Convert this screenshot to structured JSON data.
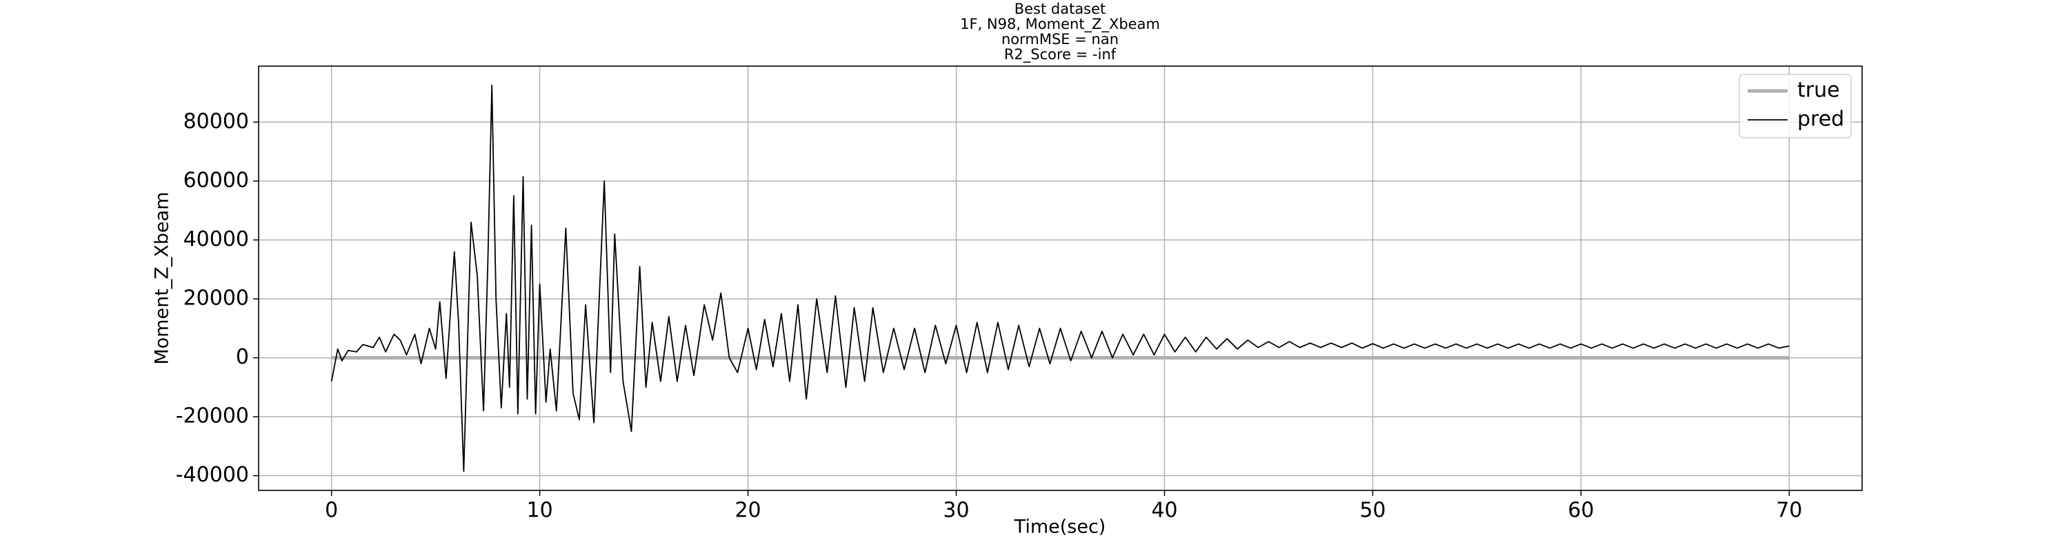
{
  "chart_data": {
    "type": "line",
    "title": [
      "Best dataset",
      "1F, N98, Moment_Z_Xbeam",
      "normMSE = nan",
      "R2_Score = -inf"
    ],
    "xlabel": "Time(sec)",
    "ylabel": "Moment_Z_Xbeam",
    "xlim": [
      -3.5,
      73.5
    ],
    "ylim": [
      -45000,
      99000
    ],
    "xticks": [
      0,
      10,
      20,
      30,
      40,
      50,
      60,
      70
    ],
    "yticks": [
      -40000,
      -20000,
      0,
      20000,
      40000,
      60000,
      80000
    ],
    "grid": true,
    "legend": "upper right",
    "series": [
      {
        "name": "true",
        "color": "#b0b0b0",
        "x": [
          0,
          70
        ],
        "values": [
          0,
          0
        ]
      },
      {
        "name": "pred",
        "color": "#000000",
        "x": [
          0,
          0.3,
          0.5,
          0.8,
          1.2,
          1.5,
          2,
          2.3,
          2.6,
          3,
          3.3,
          3.6,
          4,
          4.3,
          4.7,
          5,
          5.2,
          5.5,
          5.9,
          6.1,
          6.35,
          6.7,
          7,
          7.3,
          7.5,
          7.7,
          7.9,
          8.15,
          8.4,
          8.55,
          8.75,
          8.95,
          9.2,
          9.4,
          9.6,
          9.8,
          10,
          10.3,
          10.5,
          10.8,
          11.25,
          11.6,
          11.9,
          12.2,
          12.6,
          13.1,
          13.4,
          13.6,
          14,
          14.4,
          14.8,
          15.1,
          15.4,
          15.8,
          16.2,
          16.6,
          17,
          17.4,
          17.9,
          18.3,
          18.7,
          19.1,
          19.5,
          20,
          20.4,
          20.8,
          21.2,
          21.6,
          22,
          22.4,
          22.8,
          23.3,
          23.8,
          24.2,
          24.7,
          25.1,
          25.6,
          26,
          26.5,
          27,
          27.5,
          28,
          28.5,
          29,
          29.5,
          30,
          30.5,
          31,
          31.5,
          32,
          32.5,
          33,
          33.5,
          34,
          34.5,
          35,
          35.5,
          36,
          36.5,
          37,
          37.5,
          38,
          38.5,
          39,
          39.5,
          40,
          40.5,
          41,
          41.5,
          42,
          42.5,
          43,
          43.5,
          44,
          44.5,
          45,
          45.5,
          46,
          46.5,
          47,
          47.5,
          48,
          48.5,
          49,
          49.5,
          50,
          50.5,
          51,
          51.5,
          52,
          52.5,
          53,
          53.5,
          54,
          54.5,
          55,
          55.5,
          56,
          56.5,
          57,
          57.5,
          58,
          58.5,
          59,
          59.5,
          60,
          60.5,
          61,
          61.5,
          62,
          62.5,
          63,
          63.5,
          64,
          64.5,
          65,
          65.5,
          66,
          66.5,
          67,
          67.5,
          68,
          68.5,
          69,
          69.5,
          70
        ],
        "values": [
          -8000,
          3000,
          -1000,
          2500,
          2000,
          4500,
          3500,
          7000,
          2000,
          8000,
          6000,
          1000,
          8000,
          -2000,
          10000,
          3000,
          19000,
          -7000,
          36000,
          12000,
          -38500,
          46000,
          28000,
          -18000,
          30000,
          92500,
          20000,
          -17000,
          15000,
          -10000,
          55000,
          -19000,
          61500,
          -14000,
          45000,
          -19000,
          25000,
          -15000,
          3000,
          -18000,
          44000,
          -12000,
          -21000,
          18000,
          -22000,
          60000,
          -5000,
          42000,
          -8000,
          -25000,
          31000,
          -10000,
          12000,
          -8000,
          14000,
          -8000,
          11000,
          -6000,
          18000,
          6000,
          22000,
          0,
          -5000,
          10000,
          -4000,
          13000,
          -3000,
          15000,
          -8000,
          18000,
          -14000,
          20000,
          -5000,
          21000,
          -10000,
          17000,
          -8000,
          17000,
          -5000,
          10000,
          -4000,
          10000,
          -5000,
          11000,
          -2000,
          11000,
          -5000,
          12000,
          -5000,
          12000,
          -4000,
          11000,
          -3000,
          10000,
          -2000,
          10000,
          -1000,
          9000,
          0,
          9000,
          0,
          8000,
          1000,
          8000,
          1000,
          8000,
          2000,
          7000,
          2000,
          7000,
          3000,
          6500,
          3000,
          6000,
          3500,
          5500,
          3500,
          5500,
          3500,
          5000,
          3500,
          5000,
          3500,
          5000,
          3300,
          4800,
          3300,
          4700,
          3300,
          4700,
          3300,
          4700,
          3300,
          4700,
          3300,
          4700,
          3300,
          4700,
          3300,
          4700,
          3300,
          4700,
          3300,
          4700,
          3300,
          4700,
          3300,
          4700,
          3300,
          4700,
          3300,
          4700,
          3300,
          4700,
          3300,
          4700,
          3300,
          4700,
          3300,
          4700,
          3300,
          4700,
          3300,
          4700,
          3300,
          4000
        ]
      }
    ]
  }
}
